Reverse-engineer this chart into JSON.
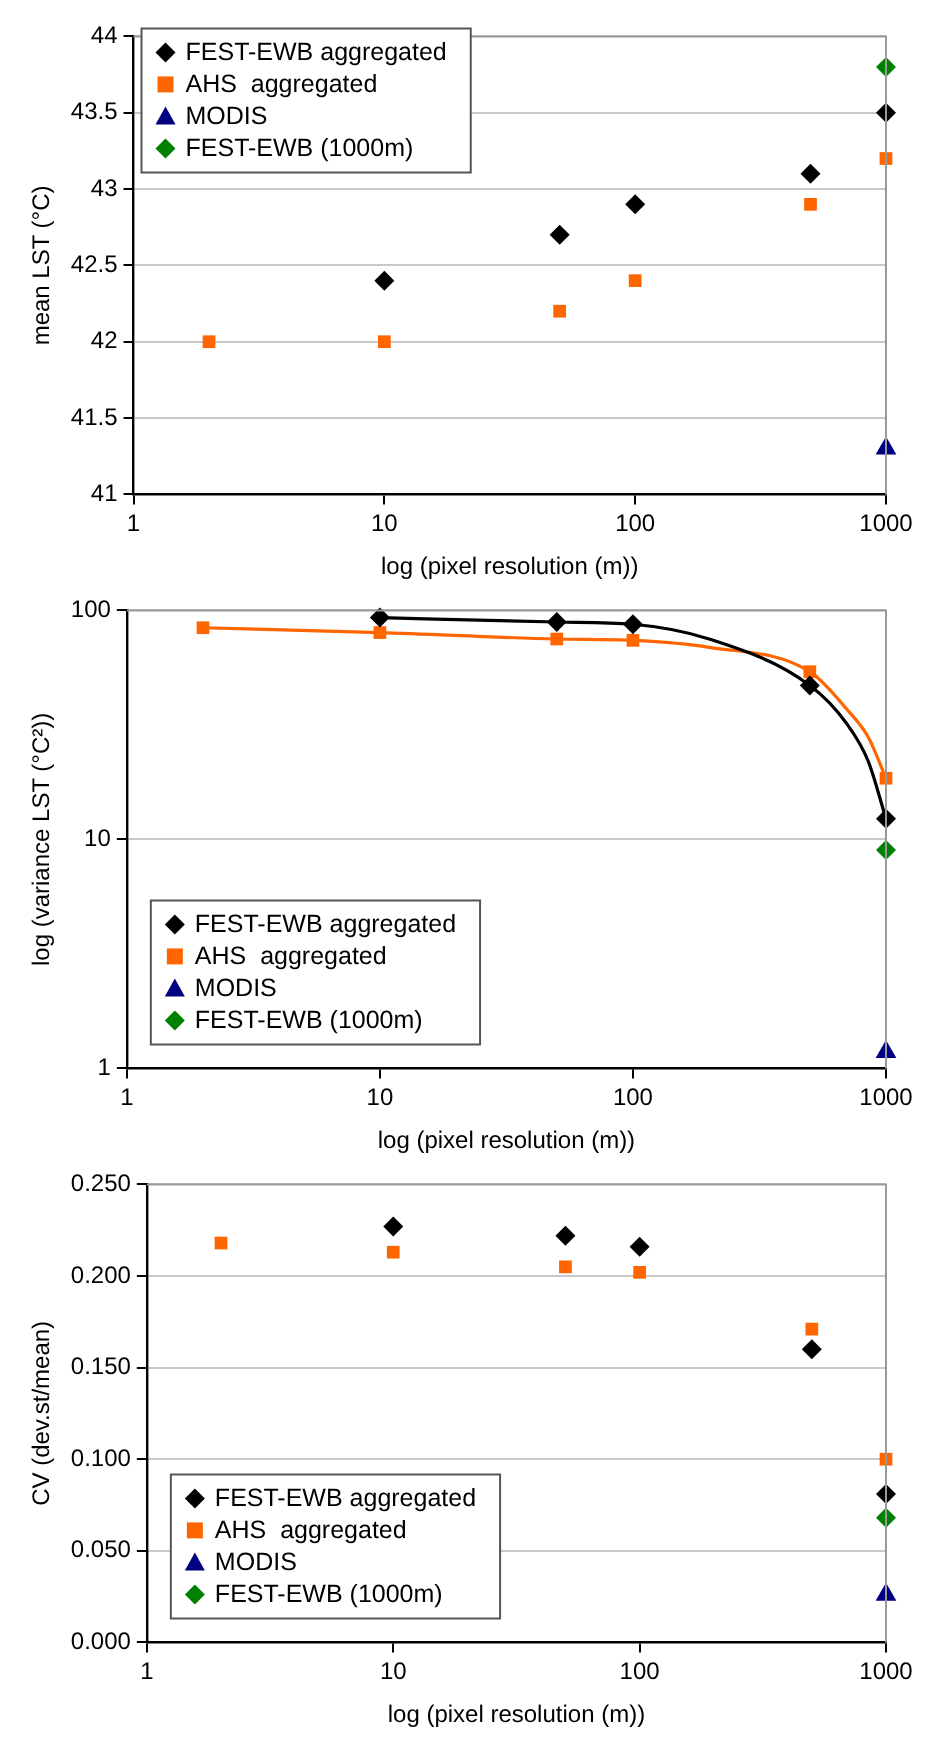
{
  "chart_data": [
    {
      "type": "scatter",
      "xlabel": "log (pixel resolution (m))",
      "ylabel": "mean LST (°C)",
      "log": "x",
      "xlim": [
        1,
        1000
      ],
      "xticks": [
        1,
        10,
        100,
        1000
      ],
      "ylim": [
        41,
        44
      ],
      "yticks": [
        41,
        41.5,
        42,
        42.5,
        43,
        43.5,
        44
      ],
      "grid": "y",
      "legend": "top left",
      "series": [
        {
          "name": "FEST-EWB aggregated",
          "color": "#000000",
          "marker": "diamond",
          "x": [
            10,
            50,
            100,
            500,
            1000
          ],
          "values": [
            42.4,
            42.7,
            42.9,
            43.1,
            43.5
          ]
        },
        {
          "name": "AHS  aggregated",
          "color": "#ff6600",
          "marker": "square",
          "x": [
            2,
            10,
            50,
            100,
            500,
            1000
          ],
          "values": [
            42.0,
            42.0,
            42.2,
            42.4,
            42.9,
            43.2
          ]
        },
        {
          "name": "MODIS",
          "color": "#000080",
          "marker": "triangle",
          "x": [
            1000
          ],
          "values": [
            41.3
          ]
        },
        {
          "name": "FEST-EWB (1000m)",
          "color": "#008000",
          "marker": "diamond",
          "x": [
            1000
          ],
          "values": [
            43.8
          ]
        }
      ]
    },
    {
      "type": "scatter",
      "xlabel": "log (pixel resolution (m))",
      "ylabel": "log (variance LST (°C²))",
      "log": "xy",
      "xlim": [
        1,
        1000
      ],
      "xticks": [
        1,
        10,
        100,
        1000
      ],
      "ylim": [
        1,
        100
      ],
      "yticks": [
        1,
        10,
        100
      ],
      "grid": "y",
      "legend": "bottom left",
      "series": [
        {
          "type": "line",
          "color": "#000000",
          "marker": "none",
          "x": [
            10,
            50,
            100,
            200,
            500,
            700,
            850,
            1000
          ],
          "values": [
            93,
            89,
            87,
            75,
            47,
            32,
            22,
            12.3
          ]
        },
        {
          "type": "line",
          "color": "#ff6600",
          "marker": "none",
          "x": [
            2,
            10,
            50,
            100,
            200,
            500,
            700,
            850,
            1000
          ],
          "values": [
            84,
            80,
            75,
            74,
            69,
            54,
            37,
            28,
            18.5
          ]
        },
        {
          "name": "FEST-EWB aggregated",
          "color": "#000000",
          "marker": "diamond",
          "x": [
            10,
            50,
            100,
            500,
            1000
          ],
          "values": [
            93,
            89,
            87,
            47,
            12.3
          ]
        },
        {
          "name": "AHS  aggregated",
          "color": "#ff6600",
          "marker": "square",
          "x": [
            2,
            10,
            50,
            100,
            500,
            1000
          ],
          "values": [
            84,
            80,
            75,
            74,
            54,
            18.5
          ]
        },
        {
          "name": "MODIS",
          "color": "#000080",
          "marker": "triangle",
          "x": [
            1000
          ],
          "values": [
            1.18
          ]
        },
        {
          "name": "FEST-EWB (1000m)",
          "color": "#008000",
          "marker": "diamond",
          "x": [
            1000
          ],
          "values": [
            9.0
          ]
        }
      ]
    },
    {
      "type": "scatter",
      "xlabel": "log (pixel resolution (m))",
      "ylabel": "CV (dev.st/mean)",
      "log": "x",
      "xlim": [
        1,
        1000
      ],
      "xticks": [
        1,
        10,
        100,
        1000
      ],
      "ylim": [
        0,
        0.25
      ],
      "yticks": [
        {
          "value": 0,
          "label": "0.000"
        },
        {
          "value": 0.05,
          "label": "0.050"
        },
        {
          "value": 0.1,
          "label": "0.100"
        },
        {
          "value": 0.15,
          "label": "0.150"
        },
        {
          "value": 0.2,
          "label": "0.200"
        },
        {
          "value": 0.25,
          "label": "0.250"
        }
      ],
      "grid": "y",
      "legend": "bottom left",
      "series": [
        {
          "name": "FEST-EWB aggregated",
          "color": "#000000",
          "marker": "diamond",
          "x": [
            10,
            50,
            100,
            500,
            1000
          ],
          "values": [
            0.227,
            0.222,
            0.216,
            0.16,
            0.081
          ]
        },
        {
          "name": "AHS  aggregated",
          "color": "#ff6600",
          "marker": "square",
          "x": [
            2,
            10,
            50,
            100,
            500,
            1000
          ],
          "values": [
            0.218,
            0.213,
            0.205,
            0.202,
            0.171,
            0.1
          ]
        },
        {
          "name": "MODIS",
          "color": "#000080",
          "marker": "triangle",
          "x": [
            1000
          ],
          "values": [
            0.026
          ]
        },
        {
          "name": "FEST-EWB (1000m)",
          "color": "#008000",
          "marker": "diamond",
          "x": [
            1000
          ],
          "values": [
            0.068
          ]
        }
      ]
    }
  ]
}
